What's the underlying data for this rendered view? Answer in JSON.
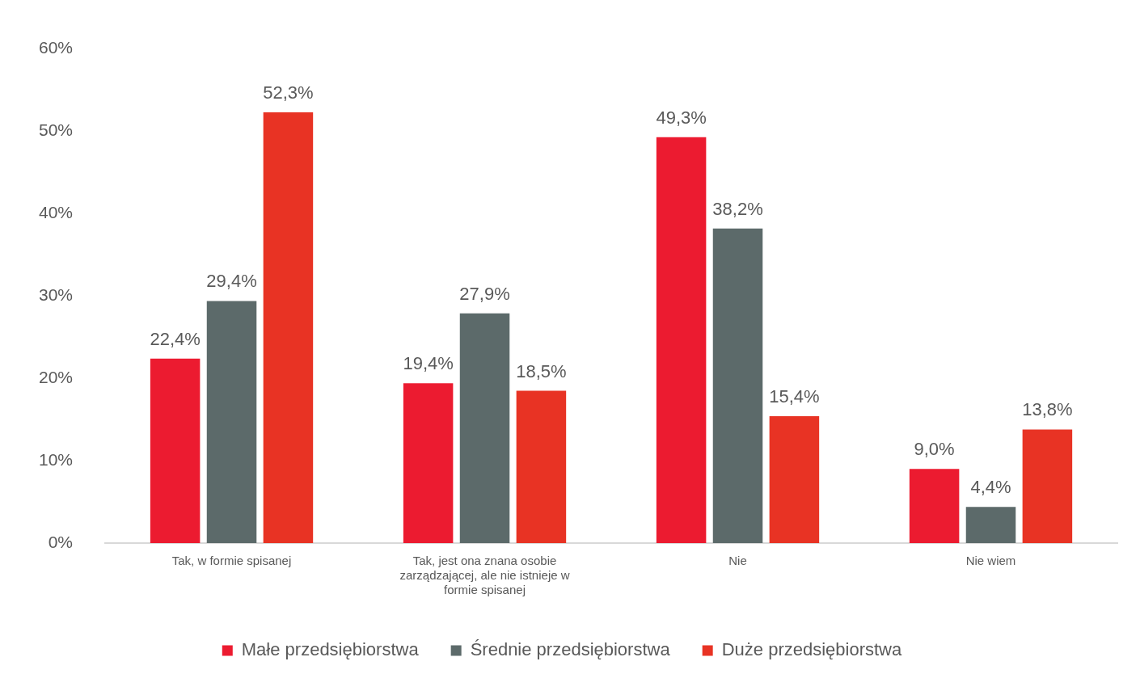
{
  "chart_data": {
    "type": "bar",
    "categories": [
      "Tak, w formie spisanej",
      "Tak, jest ona znana osobie zarządzającej, ale nie istnieje w formie spisanej",
      "Nie",
      "Nie wiem"
    ],
    "series": [
      {
        "name": "Małe przedsiębiorstwa",
        "color": "#ec1b30",
        "values": [
          22.4,
          19.4,
          49.3,
          9.0
        ],
        "value_labels": [
          "22,4%",
          "19,4%",
          "49,3%",
          "9,0%"
        ]
      },
      {
        "name": "Średnie przedsiębiorstwa",
        "color": "#5c6a6a",
        "values": [
          29.4,
          27.9,
          38.2,
          4.4
        ],
        "value_labels": [
          "29,4%",
          "27,9%",
          "38,2%",
          "4,4%"
        ]
      },
      {
        "name": "Duże przedsiębiorstwa",
        "color": "#e83324",
        "values": [
          52.3,
          18.5,
          15.4,
          13.8
        ],
        "value_labels": [
          "52,3%",
          "18,5%",
          "15,4%",
          "13,8%"
        ]
      }
    ],
    "ylim": [
      0,
      60
    ],
    "yticks": [
      {
        "value": 0,
        "label": "0%"
      },
      {
        "value": 10,
        "label": "10%"
      },
      {
        "value": 20,
        "label": "20%"
      },
      {
        "value": 30,
        "label": "30%"
      },
      {
        "value": 40,
        "label": "40%"
      },
      {
        "value": 50,
        "label": "50%"
      },
      {
        "value": 60,
        "label": "60%"
      }
    ],
    "grid": false,
    "legend": "bottom"
  }
}
